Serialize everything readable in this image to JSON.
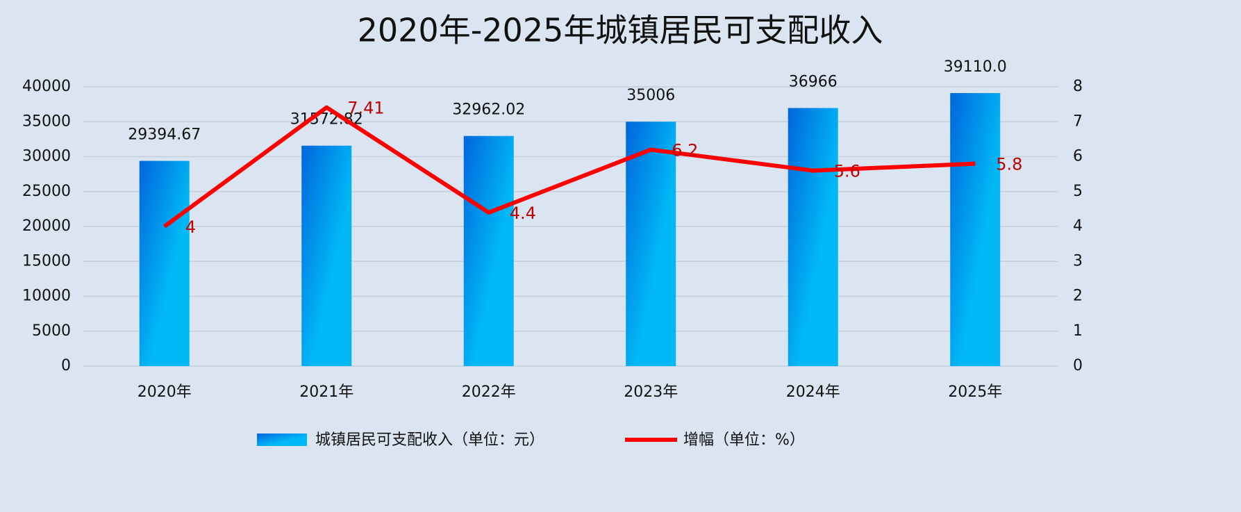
{
  "chart_data": {
    "type": "combo",
    "title": "2020年-2025年城镇居民可支配收入",
    "categories": [
      "2020年",
      "2021年",
      "2022年",
      "2023年",
      "2024年",
      "2025年"
    ],
    "series": [
      {
        "name": "城镇居民可支配收入（单位：元）",
        "type": "bar",
        "color": "#00b8f5",
        "values": [
          29394.67,
          31572.82,
          32962.02,
          35006,
          36966,
          39110.0
        ],
        "value_labels": [
          "29394.67",
          "31572.82",
          "32962.02",
          "35006",
          "36966",
          "39110.0"
        ]
      },
      {
        "name": "增幅（单位：%）",
        "type": "line",
        "axis": "y2",
        "color": "#ff0000",
        "values": [
          4,
          7.41,
          4.4,
          6.2,
          5.6,
          5.8
        ]
      }
    ],
    "ylim": [
      0,
      40000
    ],
    "yticks": [
      0,
      5000,
      10000,
      15000,
      20000,
      25000,
      30000,
      35000,
      40000
    ],
    "y2lim": [
      0,
      8
    ],
    "y2ticks": [
      0,
      1,
      2,
      3,
      4,
      5,
      6,
      7,
      8
    ],
    "grid": true,
    "legend": "bottom"
  }
}
